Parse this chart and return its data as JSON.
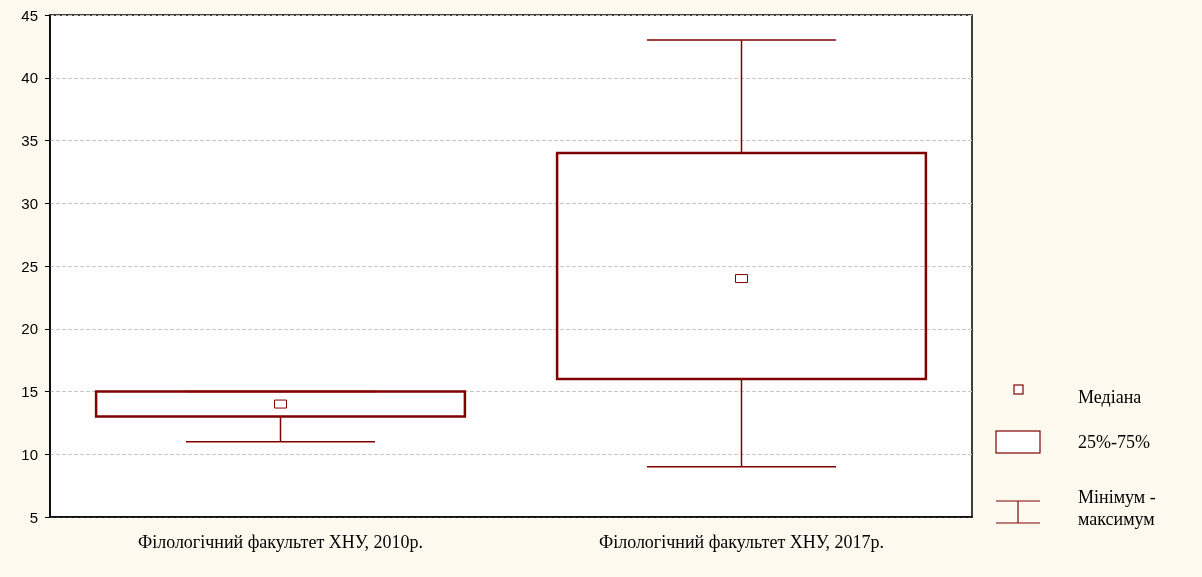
{
  "chart_data": {
    "type": "box",
    "categories": [
      "Філологічний факультет ХНУ, 2010р.",
      "Філологічний факультет ХНУ, 2017р."
    ],
    "boxes": [
      {
        "low": 11,
        "q1": 13,
        "median": 14,
        "q3": 15,
        "high": 15
      },
      {
        "low": 9,
        "q1": 16,
        "median": 24,
        "q3": 34,
        "high": 43
      }
    ],
    "color": "#800000",
    "ylim": [
      5,
      45
    ],
    "yticks": [
      5,
      10,
      15,
      20,
      25,
      30,
      35,
      40,
      45
    ],
    "grid": "y",
    "marker": "square",
    "annotations": [
      "Медіана",
      "25%-75%",
      "Мінімум - максимум"
    ]
  }
}
